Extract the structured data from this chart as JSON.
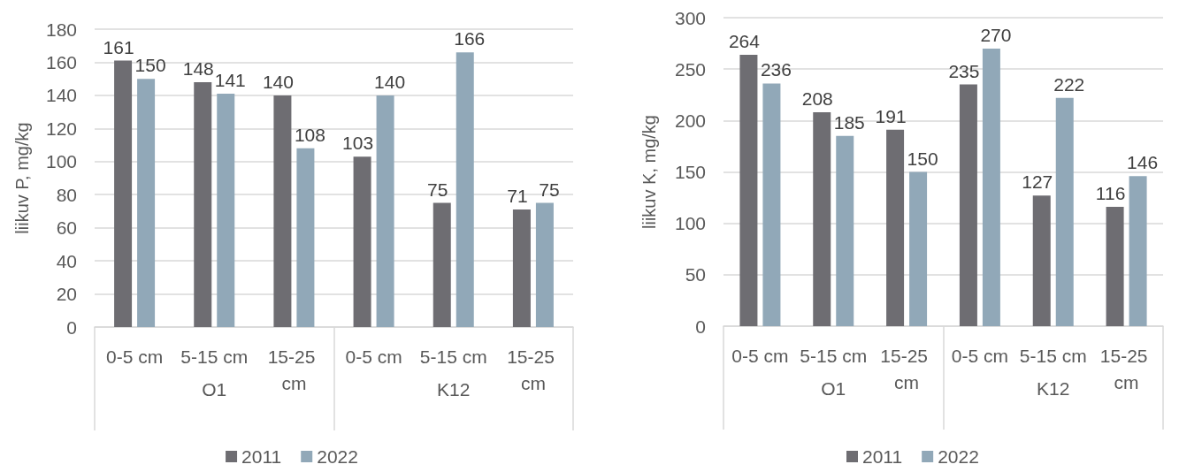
{
  "chart_data": [
    {
      "type": "bar",
      "categories": [
        "0-5 cm",
        "5-15 cm",
        "15-25 cm",
        "0-5 cm",
        "5-15 cm",
        "15-25 cm"
      ],
      "annotations": [
        "O1",
        "K12"
      ],
      "ylabel": "liikuv P, mg/kg",
      "ylim": [
        0,
        180
      ],
      "yticks": [
        0,
        20,
        40,
        60,
        80,
        100,
        120,
        140,
        160,
        180
      ],
      "grid": "y",
      "legend": "bottom",
      "data_labels": true,
      "series": [
        {
          "name": "2011",
          "color": "#6e6d72",
          "values": [
            161,
            148,
            140,
            103,
            75,
            71
          ]
        },
        {
          "name": "2022",
          "color": "#91a8b8",
          "values": [
            150,
            141,
            108,
            140,
            166,
            75
          ]
        }
      ]
    },
    {
      "type": "bar",
      "categories": [
        "0-5 cm",
        "5-15 cm",
        "15-25 cm",
        "0-5 cm",
        "5-15 cm",
        "15-25 cm"
      ],
      "annotations": [
        "O1",
        "K12"
      ],
      "ylabel": "liikuv K, mg/kg",
      "ylim": [
        0,
        300
      ],
      "yticks": [
        0,
        50,
        100,
        150,
        200,
        250,
        300
      ],
      "grid": "y",
      "legend": "bottom",
      "data_labels": true,
      "series": [
        {
          "name": "2011",
          "color": "#6e6d72",
          "values": [
            264,
            208,
            191,
            235,
            127,
            116
          ]
        },
        {
          "name": "2022",
          "color": "#91a8b8",
          "values": [
            236,
            185,
            150,
            270,
            222,
            146
          ]
        }
      ]
    }
  ]
}
